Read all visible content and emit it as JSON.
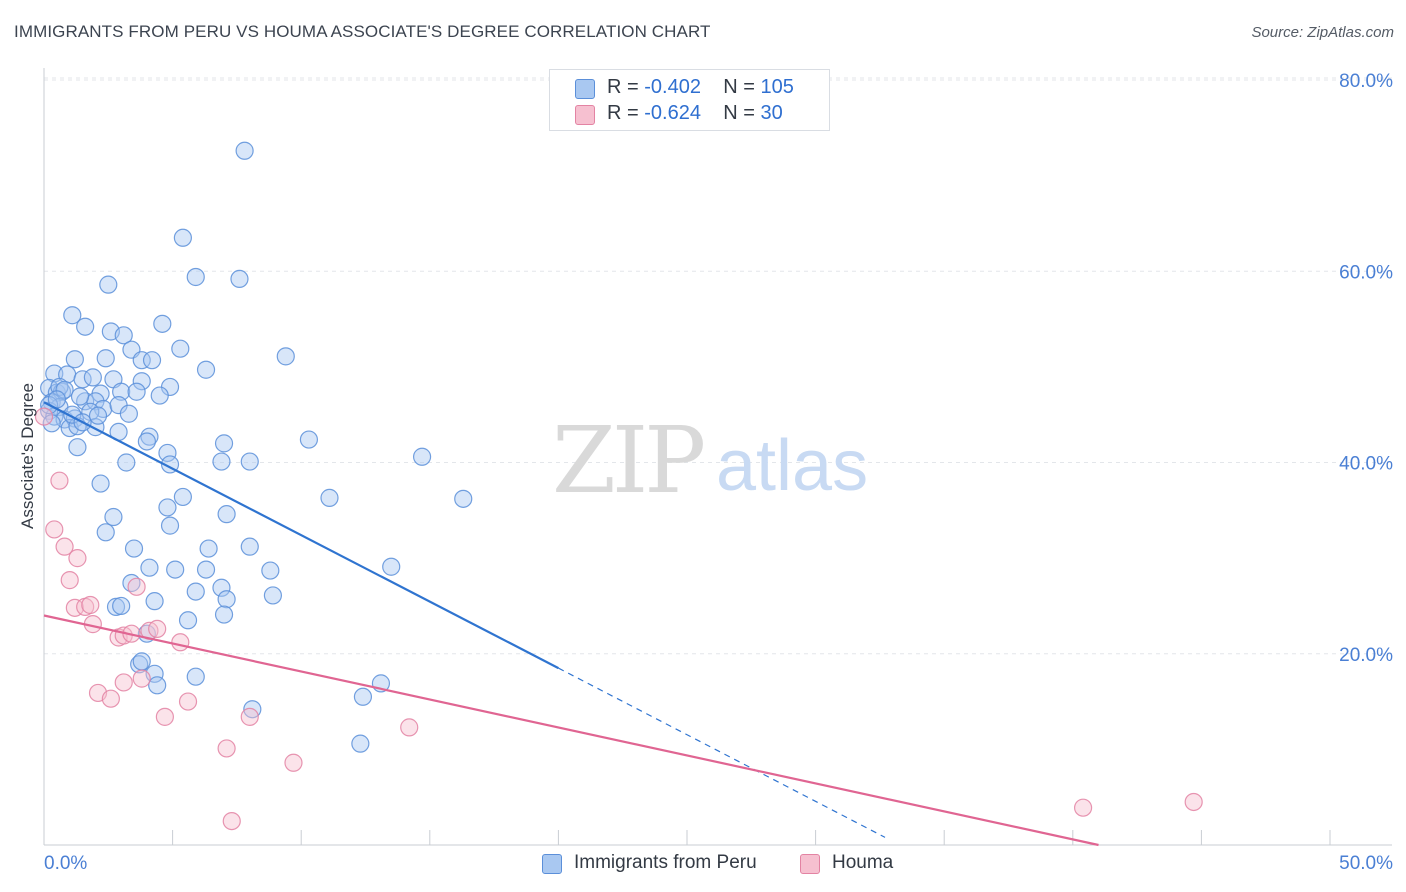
{
  "title": "IMMIGRANTS FROM PERU VS HOUMA ASSOCIATE'S DEGREE CORRELATION CHART",
  "source": "Source: ZipAtlas.com",
  "legend": {
    "rows": [
      {
        "r_label": "R = ",
        "r_value": "-0.402",
        "n_label": "N = ",
        "n_value": "105",
        "color": "#a9c8f1",
        "border": "#5b8fd9"
      },
      {
        "r_label": "R = ",
        "r_value": "-0.624",
        "n_label": "N = ",
        "n_value": "30",
        "color": "#f6c0d0",
        "border": "#e383a3"
      }
    ]
  },
  "bottom_legend": [
    {
      "label": "Immigrants from Peru",
      "color": "#a9c8f1",
      "border": "#5b8fd9"
    },
    {
      "label": "Houma",
      "color": "#f6c0d0",
      "border": "#e383a3"
    }
  ],
  "watermark": {
    "zip": "ZIP",
    "atlas": "atlas"
  },
  "chart_data": {
    "type": "scatter",
    "title": "IMMIGRANTS FROM PERU VS HOUMA ASSOCIATE'S DEGREE CORRELATION CHART",
    "xlabel": "",
    "ylabel": "Associate's Degree",
    "xlim": [
      0,
      50
    ],
    "ylim": [
      0,
      80
    ],
    "x_tick_labels": [
      "0.0%",
      "50.0%"
    ],
    "y_ticks": [
      20,
      40,
      60,
      80
    ],
    "y_tick_labels": [
      "20.0%",
      "40.0%",
      "60.0%",
      "80.0%"
    ],
    "grid": true,
    "series": [
      {
        "name": "Immigrants from Peru",
        "color": "#5b8fd9",
        "fill": "#a9c8f1",
        "trend": {
          "x": [
            0,
            20.0
          ],
          "y": [
            46.3,
            18.5
          ],
          "dashed_to": [
            32.7,
            0.8
          ],
          "color": "#2f74d0"
        },
        "points": [
          [
            7.8,
            72.6
          ],
          [
            5.4,
            63.5
          ],
          [
            5.9,
            59.4
          ],
          [
            7.6,
            59.2
          ],
          [
            2.5,
            58.6
          ],
          [
            1.1,
            55.4
          ],
          [
            1.6,
            54.2
          ],
          [
            2.6,
            53.7
          ],
          [
            3.1,
            53.3
          ],
          [
            4.6,
            54.5
          ],
          [
            5.3,
            51.9
          ],
          [
            9.4,
            51.1
          ],
          [
            1.2,
            50.8
          ],
          [
            2.4,
            50.9
          ],
          [
            3.4,
            51.8
          ],
          [
            3.8,
            50.7
          ],
          [
            4.2,
            50.7
          ],
          [
            6.3,
            49.7
          ],
          [
            0.4,
            49.3
          ],
          [
            0.9,
            49.2
          ],
          [
            1.5,
            48.7
          ],
          [
            1.9,
            48.9
          ],
          [
            2.7,
            48.7
          ],
          [
            3.8,
            48.5
          ],
          [
            4.9,
            47.9
          ],
          [
            0.2,
            47.8
          ],
          [
            0.5,
            47.3
          ],
          [
            0.7,
            47.4
          ],
          [
            2.2,
            47.2
          ],
          [
            3.0,
            47.4
          ],
          [
            3.6,
            47.4
          ],
          [
            4.5,
            47.0
          ],
          [
            0.3,
            46.3
          ],
          [
            0.6,
            45.8
          ],
          [
            1.6,
            46.4
          ],
          [
            2.0,
            46.4
          ],
          [
            2.3,
            45.6
          ],
          [
            2.9,
            46.0
          ],
          [
            0.2,
            45.4
          ],
          [
            0.4,
            44.8
          ],
          [
            0.8,
            44.5
          ],
          [
            1.2,
            44.6
          ],
          [
            1.8,
            45.3
          ],
          [
            3.3,
            45.1
          ],
          [
            0.3,
            44.1
          ],
          [
            1.0,
            43.6
          ],
          [
            1.3,
            43.8
          ],
          [
            2.0,
            43.7
          ],
          [
            2.9,
            43.2
          ],
          [
            4.1,
            42.7
          ],
          [
            7.0,
            42.0
          ],
          [
            10.3,
            42.4
          ],
          [
            4.0,
            42.2
          ],
          [
            1.3,
            41.6
          ],
          [
            4.8,
            41.0
          ],
          [
            14.7,
            40.6
          ],
          [
            3.2,
            40.0
          ],
          [
            4.9,
            39.8
          ],
          [
            6.9,
            40.1
          ],
          [
            8.0,
            40.1
          ],
          [
            2.2,
            37.8
          ],
          [
            5.4,
            36.4
          ],
          [
            11.1,
            36.3
          ],
          [
            16.3,
            36.2
          ],
          [
            4.8,
            35.3
          ],
          [
            7.1,
            34.6
          ],
          [
            2.7,
            34.3
          ],
          [
            4.9,
            33.4
          ],
          [
            2.4,
            32.7
          ],
          [
            6.4,
            31.0
          ],
          [
            3.5,
            31.0
          ],
          [
            8.0,
            31.2
          ],
          [
            13.5,
            29.1
          ],
          [
            4.1,
            29.0
          ],
          [
            5.1,
            28.8
          ],
          [
            6.3,
            28.8
          ],
          [
            8.8,
            28.7
          ],
          [
            3.4,
            27.4
          ],
          [
            6.9,
            26.9
          ],
          [
            5.9,
            26.5
          ],
          [
            8.9,
            26.1
          ],
          [
            4.3,
            25.5
          ],
          [
            7.1,
            25.7
          ],
          [
            2.8,
            24.9
          ],
          [
            3.0,
            25.0
          ],
          [
            7.0,
            24.1
          ],
          [
            5.6,
            23.5
          ],
          [
            4.0,
            22.1
          ],
          [
            3.7,
            18.9
          ],
          [
            3.8,
            19.2
          ],
          [
            4.3,
            17.9
          ],
          [
            5.9,
            17.6
          ],
          [
            13.1,
            16.9
          ],
          [
            4.4,
            16.7
          ],
          [
            12.4,
            15.5
          ],
          [
            8.1,
            14.2
          ],
          [
            12.3,
            10.6
          ],
          [
            0.2,
            46.0
          ],
          [
            1.1,
            45.0
          ],
          [
            1.5,
            44.2
          ],
          [
            0.6,
            47.9
          ],
          [
            0.8,
            47.6
          ],
          [
            1.4,
            46.9
          ],
          [
            2.1,
            44.9
          ],
          [
            0.5,
            46.6
          ]
        ]
      },
      {
        "name": "Houma",
        "color": "#e383a3",
        "fill": "#f6c0d0",
        "trend": {
          "x": [
            0,
            41.0
          ],
          "y": [
            24.0,
            0.0
          ],
          "color": "#e06592"
        },
        "points": [
          [
            0.0,
            44.8
          ],
          [
            0.6,
            38.1
          ],
          [
            0.4,
            33.0
          ],
          [
            0.8,
            31.2
          ],
          [
            1.3,
            30.0
          ],
          [
            1.0,
            27.7
          ],
          [
            3.6,
            27.0
          ],
          [
            1.2,
            24.8
          ],
          [
            1.6,
            24.9
          ],
          [
            1.8,
            25.1
          ],
          [
            1.9,
            23.1
          ],
          [
            2.9,
            21.7
          ],
          [
            3.1,
            21.9
          ],
          [
            3.4,
            22.1
          ],
          [
            4.1,
            22.4
          ],
          [
            4.4,
            22.6
          ],
          [
            5.3,
            21.2
          ],
          [
            3.1,
            17.0
          ],
          [
            3.8,
            17.4
          ],
          [
            2.1,
            15.9
          ],
          [
            2.6,
            15.3
          ],
          [
            5.6,
            15.0
          ],
          [
            4.7,
            13.4
          ],
          [
            8.0,
            13.4
          ],
          [
            14.2,
            12.3
          ],
          [
            7.1,
            10.1
          ],
          [
            9.7,
            8.6
          ],
          [
            7.3,
            2.5
          ],
          [
            40.4,
            3.9
          ],
          [
            44.7,
            4.5
          ]
        ]
      }
    ]
  }
}
